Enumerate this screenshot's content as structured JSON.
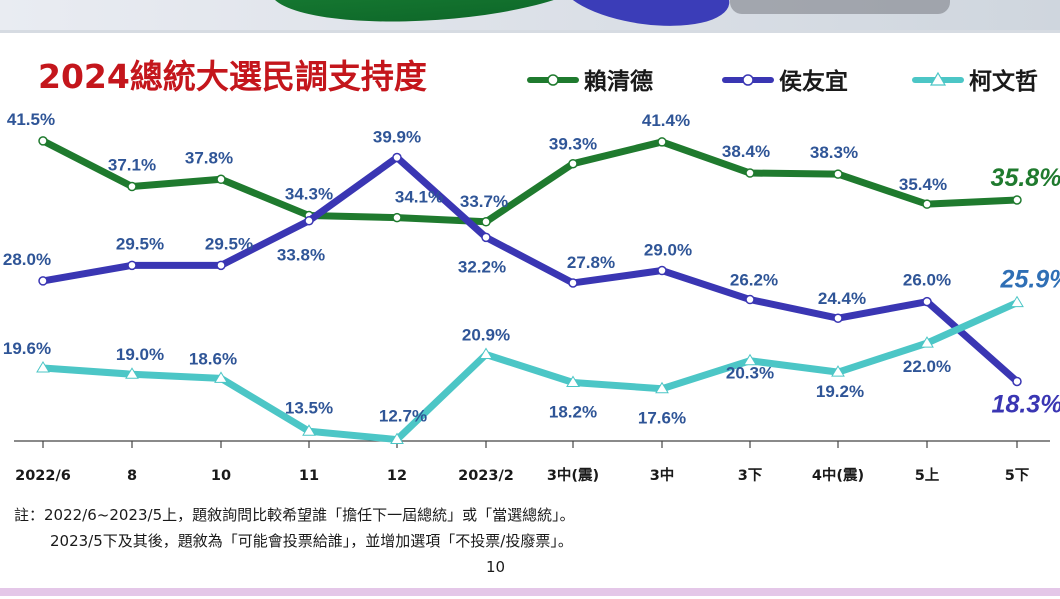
{
  "chart_data": {
    "type": "line",
    "title": "2024總統大選民調支持度",
    "categories": [
      "2022/6",
      "8",
      "10",
      "11",
      "12",
      "2023/2",
      "3中(震)",
      "3中",
      "3下",
      "4中(震)",
      "5上",
      "5下"
    ],
    "series": [
      {
        "name": "賴清德",
        "color": "#1f7a2e",
        "values": [
          41.5,
          37.1,
          37.8,
          34.3,
          34.1,
          33.7,
          39.3,
          41.4,
          38.4,
          38.3,
          35.4,
          35.8
        ],
        "labels": [
          "41.5%",
          "37.1%",
          "37.8%",
          "34.3%",
          "34.1%",
          "33.7%",
          "39.3%",
          "41.4%",
          "38.4%",
          "38.3%",
          "35.4%",
          "35.8%"
        ]
      },
      {
        "name": "侯友宜",
        "color": "#3a36b3",
        "values": [
          28.0,
          29.5,
          29.5,
          33.8,
          39.9,
          32.2,
          27.8,
          29.0,
          26.2,
          24.4,
          26.0,
          18.3
        ],
        "labels": [
          "28.0%",
          "29.5%",
          "29.5%",
          "33.8%",
          "39.9%",
          "32.2%",
          "27.8%",
          "29.0%",
          "26.2%",
          "24.4%",
          "26.0%",
          "18.3%"
        ]
      },
      {
        "name": "柯文哲",
        "color": "#4cc6c6",
        "values": [
          19.6,
          19.0,
          18.6,
          13.5,
          12.7,
          20.9,
          18.2,
          17.6,
          20.3,
          19.2,
          22.0,
          25.9
        ],
        "labels": [
          "19.6%",
          "19.0%",
          "18.6%",
          "13.5%",
          "12.7%",
          "20.9%",
          "18.2%",
          "17.6%",
          "20.3%",
          "19.2%",
          "22.0%",
          "25.9%"
        ]
      }
    ],
    "legend_position": "top-right",
    "grid": false
  },
  "notes": {
    "line1": "註：2022/6~2023/5上，題敘詢問比較希望誰「擔任下一屆總統」或「當選總統」。",
    "line2": "2023/5下及其後，題敘為「可能會投票給誰」，並增加選項「不投票/投廢票」。"
  },
  "page_number": "10",
  "colors": {
    "title": "#c4161c",
    "label_text": "#2f5597"
  }
}
